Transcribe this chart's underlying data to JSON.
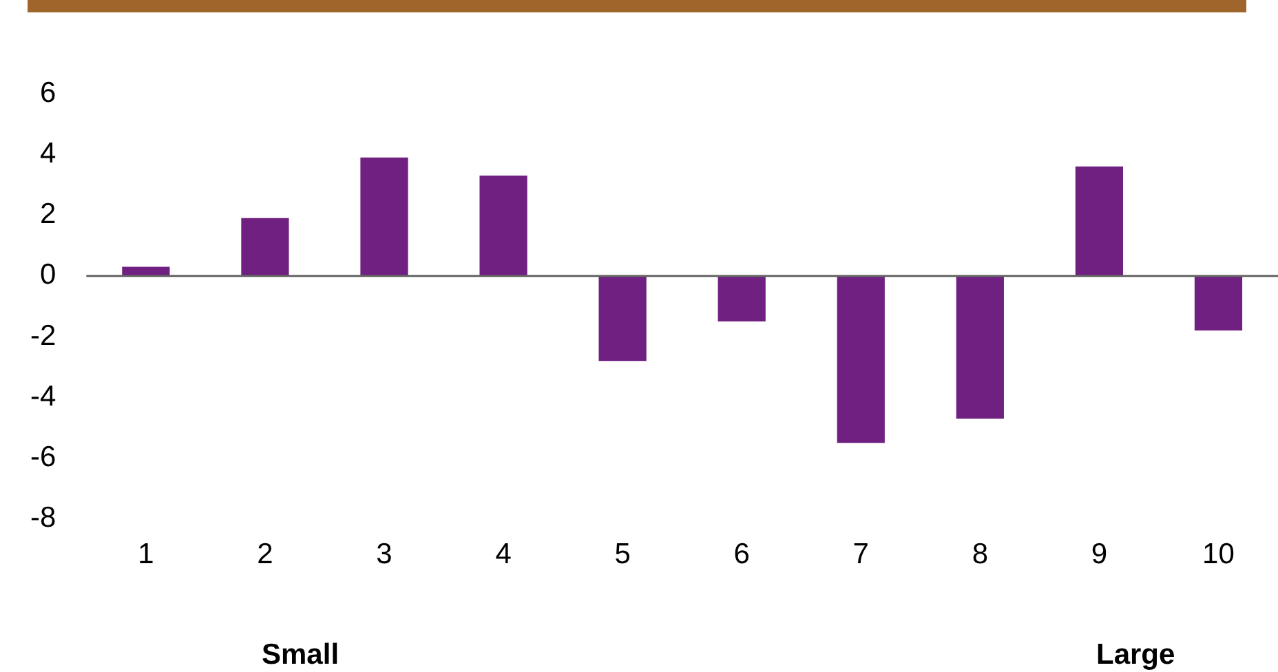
{
  "chart_data": {
    "type": "bar",
    "categories": [
      "1",
      "2",
      "3",
      "4",
      "5",
      "6",
      "7",
      "8",
      "9",
      "10"
    ],
    "values": [
      0.3,
      1.9,
      3.9,
      3.3,
      -2.8,
      -1.5,
      -5.5,
      -4.7,
      3.6,
      -1.8
    ],
    "color": "#6f2080",
    "ylim": [
      -8,
      6
    ],
    "yticks": [
      -8,
      -6,
      -4,
      -2,
      0,
      2,
      4,
      6
    ],
    "grid": false,
    "legend": false,
    "ref_lines": [
      {
        "axis": "y",
        "value": 0,
        "color": "#666666"
      }
    ],
    "annotations": [
      "Small",
      "Large"
    ]
  }
}
